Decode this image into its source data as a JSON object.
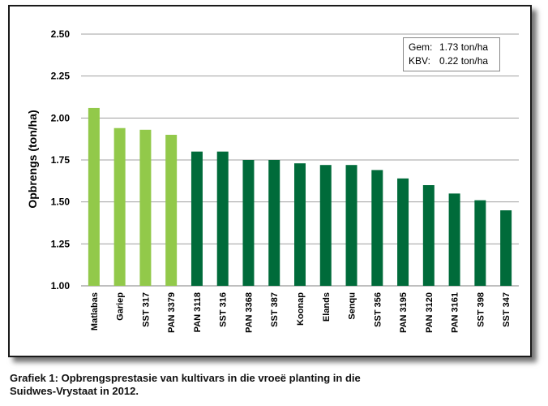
{
  "chart_data": {
    "type": "bar",
    "ylabel": "Opbrengs (ton/ha)",
    "xlabel": "",
    "ylim": [
      1.0,
      2.5
    ],
    "yticks": [
      "1.00",
      "1.25",
      "1.50",
      "1.75",
      "2.00",
      "2.25",
      "2.50"
    ],
    "grid": true,
    "categories": [
      "Matlabas",
      "Gariep",
      "SST 317",
      "PAN 3379",
      "PAN 3118",
      "SST 316",
      "PAN 3368",
      "SST 387",
      "Koonap",
      "Elands",
      "Senqu",
      "SST 356",
      "PAN 3195",
      "PAN 3120",
      "PAN 3161",
      "SST 398",
      "SST 347"
    ],
    "values": [
      2.06,
      1.94,
      1.93,
      1.9,
      1.8,
      1.8,
      1.75,
      1.75,
      1.73,
      1.72,
      1.72,
      1.69,
      1.64,
      1.6,
      1.55,
      1.51,
      1.45
    ],
    "bar_colors": [
      "#92c94a",
      "#92c94a",
      "#92c94a",
      "#92c94a",
      "#006b3a",
      "#006b3a",
      "#006b3a",
      "#006b3a",
      "#006b3a",
      "#006b3a",
      "#006b3a",
      "#006b3a",
      "#006b3a",
      "#006b3a",
      "#006b3a",
      "#006b3a",
      "#006b3a"
    ],
    "legend_placement": "top-right",
    "annotations": [
      {
        "key": "Gem:",
        "value": "1.73 ton/ha"
      },
      {
        "key": "KBV:",
        "value": "0.22 ton/ha"
      }
    ]
  },
  "caption": {
    "line1": "Grafiek 1: Opbrengsprestasie van kultivars in die vroeë planting in die",
    "line2": "Suidwes-Vrystaat in 2012."
  },
  "colors": {
    "light_green": "#92c94a",
    "dark_green": "#006b3a",
    "grid": "#a0a0a0"
  }
}
